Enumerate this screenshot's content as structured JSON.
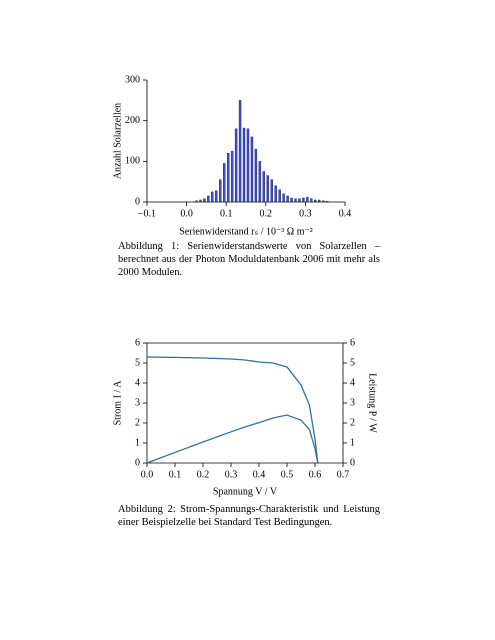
{
  "chart_data": [
    {
      "type": "histogram",
      "ylabel": "Anzahl Solarzellen",
      "xlabel": "Serienwiderstand rₛ / 10⁻³ Ω m⁻²",
      "caption": "Abbildung 1: Serienwiderstandswerte von Solarzellen – berechnet aus der Photon Moduldatenbank 2006 mit mehr als 2000 Modulen.",
      "bins": [
        0.02,
        0.03,
        0.04,
        0.05,
        0.06,
        0.07,
        0.08,
        0.09,
        0.1,
        0.11,
        0.12,
        0.13,
        0.14,
        0.15,
        0.16,
        0.17,
        0.18,
        0.19,
        0.2,
        0.21,
        0.22,
        0.23,
        0.24,
        0.25,
        0.26,
        0.27,
        0.28,
        0.29,
        0.3,
        0.31,
        0.32,
        0.33,
        0.34,
        0.35,
        0.36
      ],
      "values": [
        3,
        5,
        8,
        15,
        25,
        28,
        55,
        95,
        120,
        125,
        180,
        250,
        182,
        180,
        160,
        130,
        100,
        75,
        65,
        55,
        40,
        30,
        20,
        15,
        10,
        8,
        8,
        10,
        12,
        8,
        5,
        5,
        3,
        2
      ],
      "color": "#3b4fd0",
      "xlim": [
        -0.1,
        0.4
      ],
      "xticks": [
        {
          "value": -0.1,
          "label": "−0.1"
        },
        {
          "value": 0,
          "label": "0.0"
        },
        0.1,
        0.2,
        0.3,
        0.4
      ],
      "ylim": [
        0,
        300
      ],
      "yticks": [
        0,
        100,
        200,
        300
      ]
    },
    {
      "type": "line",
      "ylabel": "Strom I / A",
      "y2label": "Leistung P / W",
      "xlabel": "Spannung V / V",
      "caption": "Abbildung 2: Strom-Spannungs-Charakteristik und Leistung einer Beispielzelle bei Standard Test Bedingungen.",
      "x": [
        0,
        0.1,
        0.2,
        0.3,
        0.35,
        0.4,
        0.45,
        0.5,
        0.55,
        0.58,
        0.6,
        0.61
      ],
      "series": [
        {
          "color": "#2f6ea8",
          "values": [
            5.3,
            5.28,
            5.25,
            5.2,
            5.15,
            5.05,
            5.0,
            4.8,
            3.9,
            2.9,
            1.2,
            0
          ]
        },
        {
          "color": "#2f6ea8",
          "axis": "y2",
          "values": [
            0,
            0.528,
            1.05,
            1.56,
            1.8,
            2.02,
            2.25,
            2.4,
            2.14,
            1.68,
            0.72,
            0
          ]
        }
      ],
      "xlim": [
        0,
        0.7
      ],
      "xticks": [
        {
          "value": 0,
          "label": "0.0"
        },
        0.1,
        0.2,
        0.3,
        0.4,
        0.5,
        0.6,
        0.7
      ],
      "ylim": [
        0,
        6
      ],
      "yticks": [
        0,
        1,
        2,
        3,
        4,
        5,
        6
      ],
      "y2lim": [
        0,
        6
      ],
      "y2ticks": [
        0,
        1,
        2,
        3,
        4,
        5,
        6
      ]
    }
  ]
}
